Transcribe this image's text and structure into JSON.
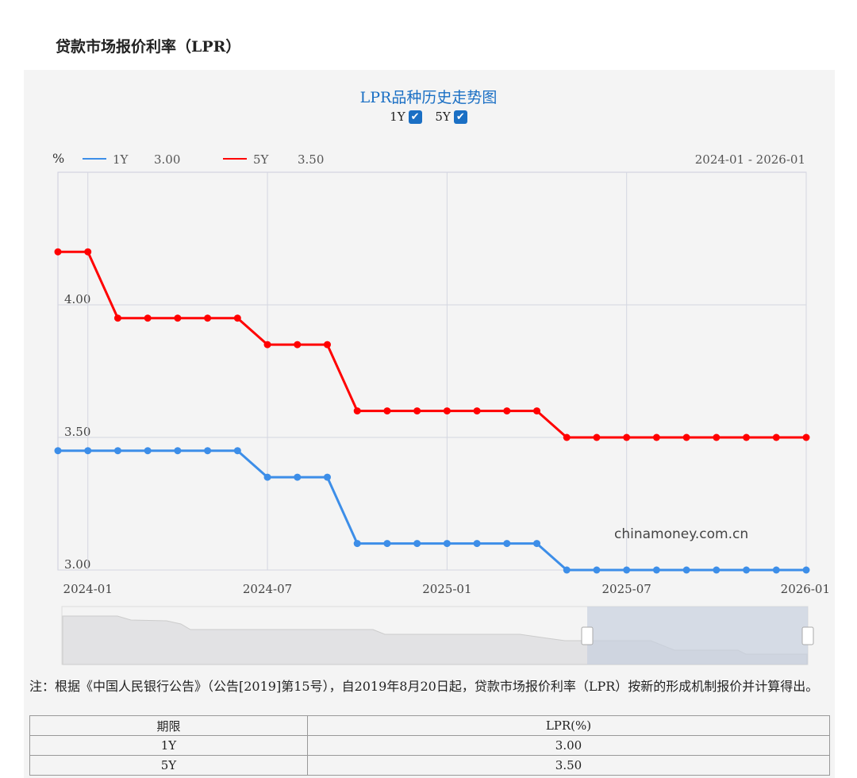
{
  "page_title": "贷款市场报价利率（LPR）",
  "chart_title": "LPR品种历史走势图",
  "toggles": [
    {
      "label": "1Y",
      "checked": true
    },
    {
      "label": "5Y",
      "checked": true
    }
  ],
  "chart_data": {
    "type": "line",
    "ylabel": "%",
    "range_label": "2024-01 - 2026-01",
    "watermark": "chinamoney.com.cn",
    "x": [
      "2023-12",
      "2024-01",
      "2024-02",
      "2024-03",
      "2024-04",
      "2024-05",
      "2024-06",
      "2024-07",
      "2024-08",
      "2024-09",
      "2024-10",
      "2024-11",
      "2024-12",
      "2025-01",
      "2025-02",
      "2025-03",
      "2025-04",
      "2025-05",
      "2025-06",
      "2025-07",
      "2025-08",
      "2025-09",
      "2025-10",
      "2025-11",
      "2025-12",
      "2026-01"
    ],
    "x_ticks": [
      "2024-01",
      "2024-07",
      "2025-01",
      "2025-07",
      "2026-01"
    ],
    "y_ticks": [
      "3.00",
      "3.50",
      "4.00"
    ],
    "ylim": [
      3.0,
      4.5
    ],
    "grid": true,
    "legend_position": "top-left",
    "series": [
      {
        "name": "1Y",
        "legend_value": "3.00",
        "color": "#3d8ee8",
        "values": [
          3.45,
          3.45,
          3.45,
          3.45,
          3.45,
          3.45,
          3.45,
          3.35,
          3.35,
          3.35,
          3.1,
          3.1,
          3.1,
          3.1,
          3.1,
          3.1,
          3.1,
          3.0,
          3.0,
          3.0,
          3.0,
          3.0,
          3.0,
          3.0,
          3.0,
          3.0
        ]
      },
      {
        "name": "5Y",
        "legend_value": "3.50",
        "color": "#ff0000",
        "values": [
          4.2,
          4.2,
          3.95,
          3.95,
          3.95,
          3.95,
          3.95,
          3.85,
          3.85,
          3.85,
          3.6,
          3.6,
          3.6,
          3.6,
          3.6,
          3.6,
          3.6,
          3.5,
          3.5,
          3.5,
          3.5,
          3.5,
          3.5,
          3.5,
          3.5,
          3.5
        ]
      }
    ]
  },
  "note": "注：根据《中国人民银行公告》（公告[2019]第15号），自2019年8月20日起，贷款市场报价利率（LPR）按新的形成机制报价并计算得出。",
  "table": {
    "headers": [
      "期限",
      "LPR(%)"
    ],
    "rows": [
      [
        "1Y",
        "3.00"
      ],
      [
        "5Y",
        "3.50"
      ]
    ]
  }
}
